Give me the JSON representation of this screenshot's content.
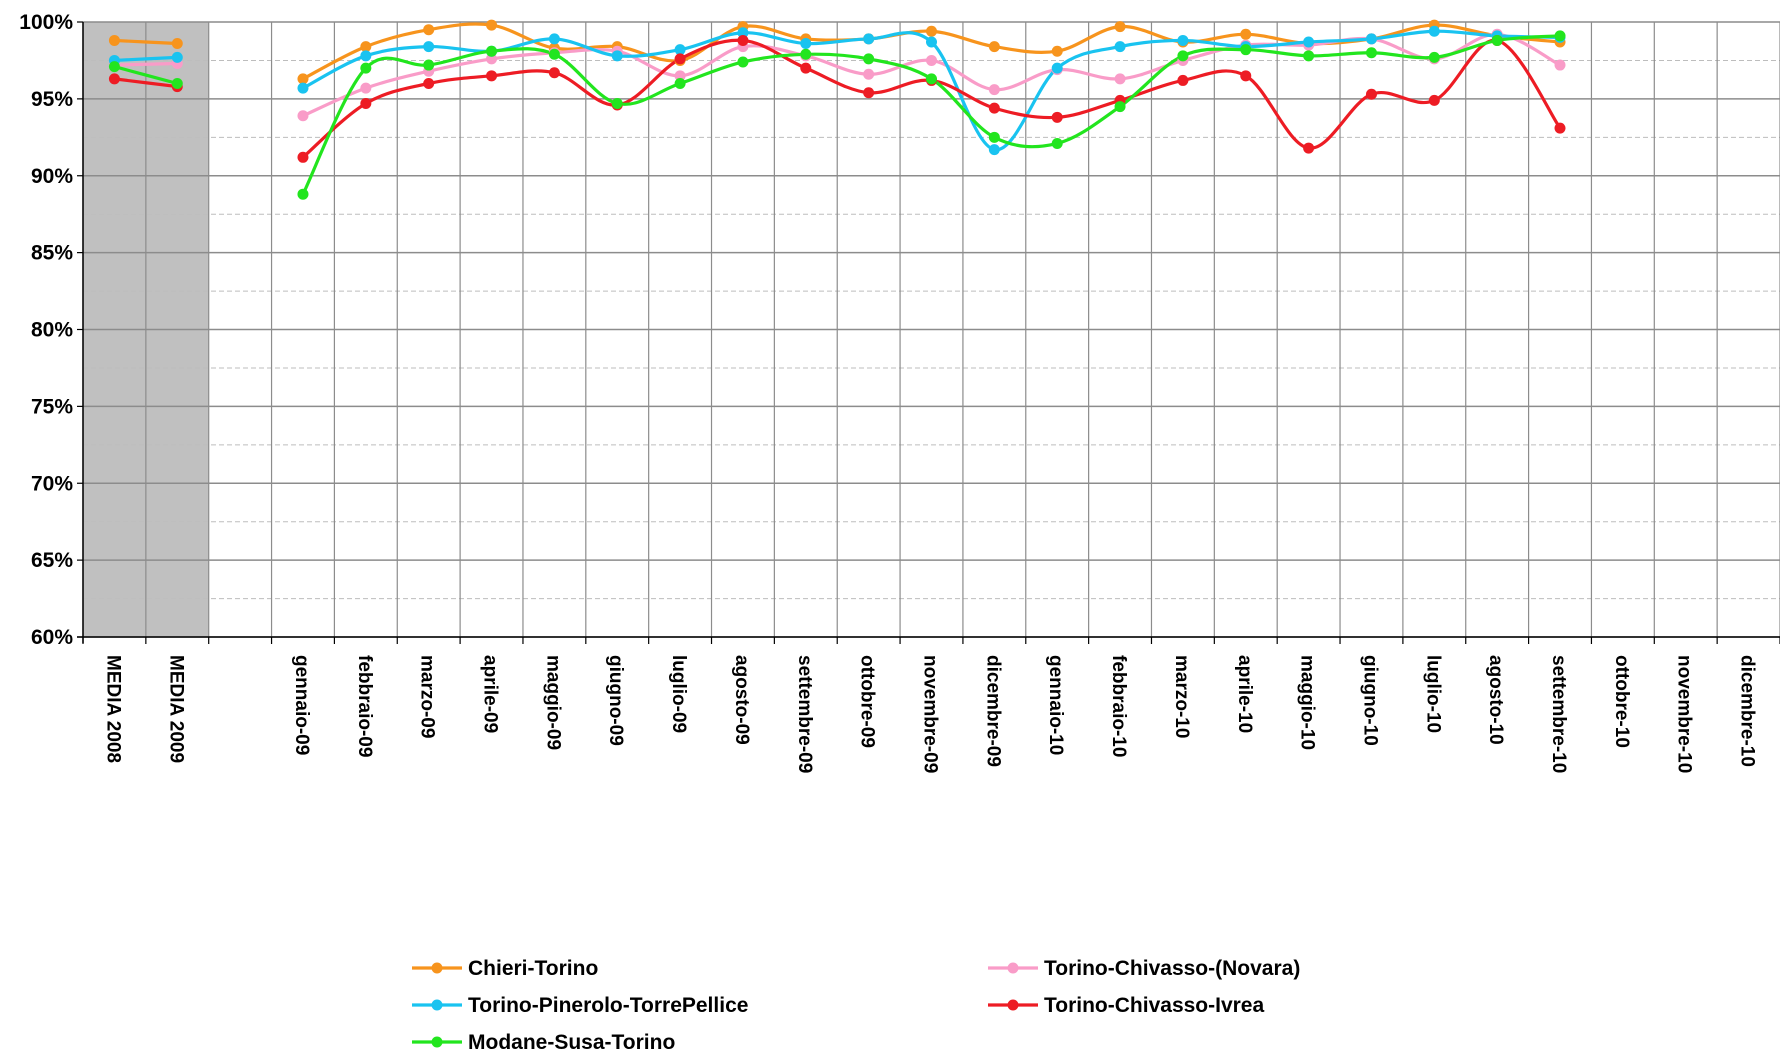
{
  "chart_data": {
    "type": "line",
    "categories": [
      "MEDIA 2008",
      "MEDIA 2009",
      "",
      "gennaio-09",
      "febbraio-09",
      "marzo-09",
      "aprile-09",
      "maggio-09",
      "giugno-09",
      "luglio-09",
      "agosto-09",
      "settembre-09",
      "ottobre-09",
      "novembre-09",
      "dicembre-09",
      "gennaio-10",
      "febbraio-10",
      "marzo-10",
      "aprile-10",
      "maggio-10",
      "giugno-10",
      "luglio-10",
      "agosto-10",
      "settembre-10",
      "ottobre-10",
      "novembre-10",
      "dicembre-10"
    ],
    "y_ticks": [
      "60%",
      "65%",
      "70%",
      "75%",
      "80%",
      "85%",
      "90%",
      "95%",
      "100%"
    ],
    "ylim": [
      60,
      100
    ],
    "y_major_step": 5,
    "y_minor_step": 2.5,
    "grid": true,
    "shaded_categories": [
      "MEDIA 2008",
      "MEDIA 2009"
    ],
    "legend_position": "bottom",
    "series": [
      {
        "name": "Chieri-Torino",
        "color": "#F7941D",
        "values": [
          98.8,
          98.6,
          null,
          96.3,
          98.4,
          99.5,
          99.8,
          98.3,
          98.4,
          97.5,
          99.7,
          98.9,
          98.9,
          99.4,
          98.4,
          98.1,
          99.7,
          98.7,
          99.2,
          98.6,
          98.9,
          99.8,
          99.1,
          98.7,
          null,
          null,
          null
        ]
      },
      {
        "name": "Torino-Chivasso-(Novara)",
        "color": "#F99CC8",
        "values": [
          97.2,
          97.3,
          null,
          93.9,
          95.7,
          96.8,
          97.6,
          98.0,
          98.1,
          96.5,
          98.4,
          97.8,
          96.6,
          97.5,
          95.6,
          96.9,
          96.3,
          97.5,
          98.5,
          98.5,
          98.9,
          97.6,
          99.2,
          97.2,
          null,
          null,
          null
        ]
      },
      {
        "name": "Torino-Pinerolo-TorrePellice",
        "color": "#19C3F0",
        "values": [
          97.5,
          97.7,
          null,
          95.7,
          97.8,
          98.4,
          98.1,
          98.9,
          97.8,
          98.2,
          99.3,
          98.6,
          98.9,
          98.7,
          91.7,
          97.0,
          98.4,
          98.8,
          98.4,
          98.7,
          98.9,
          99.4,
          99.1,
          99.0,
          null,
          null,
          null
        ]
      },
      {
        "name": "Torino-Chivasso-Ivrea",
        "color": "#ED1C24",
        "values": [
          96.3,
          95.8,
          null,
          91.2,
          94.7,
          96.0,
          96.5,
          96.7,
          94.6,
          97.6,
          98.8,
          97.0,
          95.4,
          96.2,
          94.4,
          93.8,
          94.9,
          96.2,
          96.5,
          91.8,
          95.3,
          94.9,
          98.8,
          93.1,
          null,
          null,
          null
        ]
      },
      {
        "name": "Modane-Susa-Torino",
        "color": "#22E51E",
        "values": [
          97.1,
          96.0,
          null,
          88.8,
          97.0,
          97.2,
          98.1,
          97.9,
          94.7,
          96.0,
          97.4,
          97.9,
          97.6,
          96.3,
          92.5,
          92.1,
          94.5,
          97.8,
          98.2,
          97.8,
          98.0,
          97.7,
          98.8,
          99.1,
          null,
          null,
          null
        ]
      }
    ]
  }
}
